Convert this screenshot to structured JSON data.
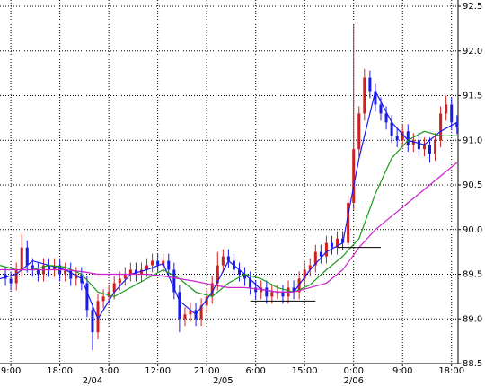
{
  "chart_data": {
    "type": "candlestick",
    "xlim": [
      -2,
      82.2
    ],
    "ylim": [
      88.5,
      92.5
    ],
    "yticks": [
      88.5,
      {
        "value": 89,
        "label": "89.0"
      },
      89.5,
      {
        "value": 90,
        "label": "90.0"
      },
      90.5,
      {
        "value": 91,
        "label": "91.0"
      },
      91.5,
      {
        "value": 92,
        "label": "92.0"
      },
      92.5
    ],
    "xticks": [
      {
        "value": 0,
        "label": "9:00"
      },
      {
        "value": 9,
        "label": "18:00"
      },
      {
        "value": 18,
        "label": "3:00"
      },
      {
        "value": 27,
        "label": "12:00"
      },
      {
        "value": 36,
        "label": "21:00"
      },
      {
        "value": 45,
        "label": "6:00"
      },
      {
        "value": 54,
        "label": "15:00"
      },
      {
        "value": 63,
        "label": "0:00"
      },
      {
        "value": 72,
        "label": "9:00"
      },
      {
        "value": 81,
        "label": "18:00"
      }
    ],
    "date_ticks": [
      {
        "value": 15,
        "label": "2/04"
      },
      {
        "value": 39,
        "label": "2/05"
      },
      {
        "value": 63,
        "label": "2/06"
      }
    ],
    "grid": true,
    "up_color": "#cc2020",
    "down_color": "#1a1aee",
    "x": [
      -1,
      0,
      1,
      2,
      3,
      4,
      5,
      6,
      7,
      8,
      9,
      10,
      11,
      12,
      13,
      14,
      15,
      16,
      17,
      18,
      19,
      20,
      21,
      22,
      23,
      24,
      25,
      26,
      27,
      28,
      29,
      30,
      31,
      32,
      33,
      34,
      35,
      36,
      37,
      38,
      39,
      40,
      41,
      42,
      43,
      44,
      45,
      46,
      47,
      48,
      49,
      50,
      51,
      52,
      53,
      54,
      55,
      56,
      57,
      58,
      59,
      60,
      61,
      62,
      63,
      64,
      65,
      66,
      67,
      68,
      69,
      70,
      71,
      72,
      73,
      74,
      75,
      76,
      77,
      78,
      79,
      80,
      81,
      82
    ],
    "ohlc": [
      [
        89.5,
        89.58,
        89.37,
        89.45
      ],
      [
        89.45,
        89.53,
        89.32,
        89.4
      ],
      [
        89.4,
        89.63,
        89.32,
        89.55
      ],
      [
        89.55,
        89.95,
        89.47,
        89.8
      ],
      [
        89.8,
        89.88,
        89.52,
        89.6
      ],
      [
        89.6,
        89.68,
        89.47,
        89.55
      ],
      [
        89.55,
        89.63,
        89.42,
        89.5
      ],
      [
        89.5,
        89.68,
        89.42,
        89.6
      ],
      [
        89.6,
        89.68,
        89.47,
        89.55
      ],
      [
        89.55,
        89.68,
        89.47,
        89.6
      ],
      [
        89.6,
        89.68,
        89.42,
        89.5
      ],
      [
        89.5,
        89.63,
        89.42,
        89.55
      ],
      [
        89.55,
        89.63,
        89.37,
        89.45
      ],
      [
        89.45,
        89.58,
        89.37,
        89.5
      ],
      [
        89.5,
        89.58,
        89.32,
        89.4
      ],
      [
        89.4,
        89.48,
        89.02,
        89.1
      ],
      [
        89.1,
        89.18,
        88.65,
        88.85
      ],
      [
        88.85,
        89.28,
        88.77,
        89.2
      ],
      [
        89.2,
        89.33,
        89.12,
        89.25
      ],
      [
        89.25,
        89.38,
        89.17,
        89.3
      ],
      [
        89.3,
        89.48,
        89.22,
        89.4
      ],
      [
        89.4,
        89.53,
        89.32,
        89.45
      ],
      [
        89.45,
        89.58,
        89.37,
        89.5
      ],
      [
        89.5,
        89.63,
        89.42,
        89.55
      ],
      [
        89.55,
        89.63,
        89.42,
        89.5
      ],
      [
        89.5,
        89.63,
        89.42,
        89.55
      ],
      [
        89.55,
        89.68,
        89.47,
        89.6
      ],
      [
        89.6,
        89.73,
        89.52,
        89.65
      ],
      [
        89.65,
        89.73,
        89.52,
        89.6
      ],
      [
        89.6,
        89.73,
        89.52,
        89.65
      ],
      [
        89.65,
        89.73,
        89.47,
        89.55
      ],
      [
        89.55,
        89.63,
        89.22,
        89.3
      ],
      [
        89.3,
        89.38,
        88.85,
        89.0
      ],
      [
        89.0,
        89.13,
        88.92,
        89.05
      ],
      [
        89.05,
        89.18,
        88.97,
        89.1
      ],
      [
        89.1,
        89.18,
        88.92,
        89.0
      ],
      [
        89.0,
        89.23,
        88.92,
        89.15
      ],
      [
        89.15,
        89.33,
        89.07,
        89.25
      ],
      [
        89.25,
        89.48,
        89.17,
        89.4
      ],
      [
        89.4,
        89.75,
        89.32,
        89.6
      ],
      [
        89.6,
        89.78,
        89.52,
        89.7
      ],
      [
        89.7,
        89.78,
        89.57,
        89.65
      ],
      [
        89.65,
        89.73,
        89.47,
        89.55
      ],
      [
        89.55,
        89.63,
        89.42,
        89.5
      ],
      [
        89.5,
        89.58,
        89.37,
        89.45
      ],
      [
        89.45,
        89.53,
        89.27,
        89.35
      ],
      [
        89.35,
        89.43,
        89.22,
        89.3
      ],
      [
        89.3,
        89.43,
        89.22,
        89.35
      ],
      [
        89.35,
        89.43,
        89.17,
        89.25
      ],
      [
        89.25,
        89.38,
        89.17,
        89.3
      ],
      [
        89.3,
        89.38,
        89.22,
        89.3
      ],
      [
        89.3,
        89.38,
        89.17,
        89.25
      ],
      [
        89.25,
        89.43,
        89.17,
        89.35
      ],
      [
        89.35,
        89.43,
        89.22,
        89.3
      ],
      [
        89.3,
        89.53,
        89.22,
        89.45
      ],
      [
        89.45,
        89.63,
        89.37,
        89.55
      ],
      [
        89.55,
        89.68,
        89.47,
        89.6
      ],
      [
        89.6,
        89.83,
        89.52,
        89.75
      ],
      [
        89.75,
        89.83,
        89.62,
        89.7
      ],
      [
        89.7,
        89.93,
        89.62,
        89.85
      ],
      [
        89.85,
        89.93,
        89.72,
        89.8
      ],
      [
        89.8,
        89.98,
        89.72,
        89.9
      ],
      [
        89.9,
        89.98,
        89.77,
        89.85
      ],
      [
        89.85,
        90.38,
        89.77,
        90.3
      ],
      [
        90.3,
        92.3,
        90.22,
        90.9
      ],
      [
        90.9,
        91.38,
        90.82,
        91.3
      ],
      [
        91.3,
        91.8,
        91.22,
        91.7
      ],
      [
        91.7,
        91.78,
        91.47,
        91.55
      ],
      [
        91.55,
        91.63,
        91.32,
        91.4
      ],
      [
        91.4,
        91.48,
        91.22,
        91.3
      ],
      [
        91.3,
        91.38,
        91.12,
        91.2
      ],
      [
        91.2,
        91.28,
        90.97,
        91.05
      ],
      [
        91.05,
        91.13,
        90.92,
        91.0
      ],
      [
        91.0,
        91.18,
        90.92,
        91.1
      ],
      [
        91.1,
        91.18,
        90.87,
        90.95
      ],
      [
        90.95,
        91.08,
        90.87,
        91.0
      ],
      [
        91.0,
        91.08,
        90.82,
        90.9
      ],
      [
        90.9,
        91.03,
        90.82,
        90.95
      ],
      [
        90.95,
        91.03,
        90.75,
        90.85
      ],
      [
        90.85,
        91.08,
        90.77,
        91.0
      ],
      [
        91.0,
        91.38,
        90.92,
        91.3
      ],
      [
        91.3,
        91.5,
        91.22,
        91.4
      ],
      [
        91.4,
        91.48,
        91.12,
        91.2
      ],
      [
        91.2,
        91.28,
        91.07,
        91.15
      ]
    ],
    "lines": [
      {
        "color": "#1a1aee",
        "x": [
          -2,
          1,
          4,
          7,
          10,
          13,
          16,
          19,
          22,
          25,
          28,
          31,
          34,
          37,
          40,
          43,
          46,
          49,
          52,
          55,
          58,
          61,
          64,
          67,
          70,
          73,
          76,
          79,
          82
        ],
        "values": [
          89.45,
          89.5,
          89.65,
          89.6,
          89.55,
          89.45,
          89.0,
          89.3,
          89.5,
          89.55,
          89.62,
          89.2,
          89.05,
          89.3,
          89.65,
          89.5,
          89.33,
          89.3,
          89.3,
          89.55,
          89.75,
          89.85,
          90.8,
          91.55,
          91.2,
          91.0,
          90.95,
          91.1,
          91.2
        ]
      },
      {
        "color": "#1a9a1a",
        "x": [
          -2,
          1,
          4,
          7,
          10,
          13,
          16,
          19,
          22,
          25,
          28,
          31,
          34,
          37,
          40,
          43,
          46,
          49,
          52,
          55,
          58,
          61,
          64,
          67,
          70,
          73,
          76,
          79,
          82
        ],
        "values": [
          89.6,
          89.55,
          89.55,
          89.6,
          89.58,
          89.5,
          89.3,
          89.25,
          89.35,
          89.45,
          89.55,
          89.45,
          89.3,
          89.25,
          89.4,
          89.5,
          89.45,
          89.35,
          89.3,
          89.38,
          89.55,
          89.7,
          89.9,
          90.4,
          90.8,
          91.0,
          91.1,
          91.05,
          91.05
        ]
      },
      {
        "color": "#cc22cc",
        "x": [
          -2,
          1,
          4,
          7,
          10,
          13,
          16,
          19,
          22,
          25,
          28,
          31,
          34,
          37,
          40,
          43,
          46,
          49,
          52,
          55,
          58,
          61,
          64,
          67,
          70,
          73,
          76,
          79,
          82
        ],
        "values": [
          89.55,
          89.55,
          89.55,
          89.55,
          89.55,
          89.53,
          89.5,
          89.5,
          89.5,
          89.5,
          89.48,
          89.45,
          89.42,
          89.38,
          89.35,
          89.35,
          89.33,
          89.3,
          89.3,
          89.35,
          89.4,
          89.55,
          89.8,
          90.0,
          90.15,
          90.3,
          90.45,
          90.6,
          90.75
        ]
      }
    ],
    "levels": [
      {
        "value": 89.2,
        "from": 44,
        "to": 56
      },
      {
        "value": 89.57,
        "from": 57,
        "to": 63
      },
      {
        "value": 89.8,
        "from": 60,
        "to": 68
      }
    ]
  }
}
